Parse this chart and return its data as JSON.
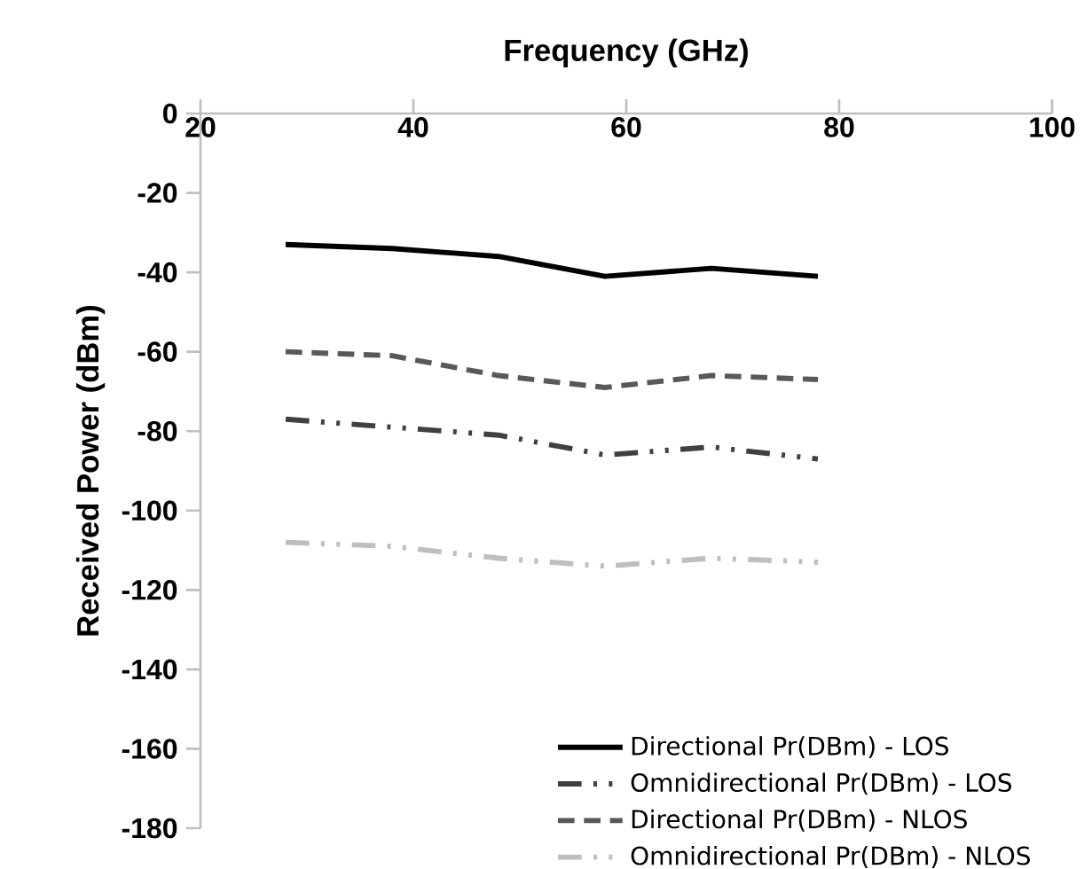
{
  "chart_data": {
    "type": "line",
    "xlabel": "Frequency (GHz)",
    "ylabel": "Received Power (dBm)",
    "x": [
      28,
      38,
      48,
      58,
      68,
      78
    ],
    "xlim": [
      20,
      100
    ],
    "xticks": [
      20,
      40,
      60,
      80,
      100
    ],
    "ylim": [
      -180,
      0
    ],
    "yticks": [
      -180,
      -160,
      -140,
      -120,
      -100,
      -80,
      -60,
      -40,
      -20,
      0
    ],
    "legend": "bottom right",
    "grid": false,
    "marker": "none",
    "series": [
      {
        "name": "Directional Pr(DBm) - LOS",
        "color": "#000000",
        "line_style": "solid",
        "values": [
          -33,
          -34,
          -36,
          -41,
          -39,
          -41
        ]
      },
      {
        "name": "Omnidirectional Pr(DBm) - LOS",
        "color": "#404040",
        "line_style": "dashdotdotted",
        "values": [
          -77,
          -79,
          -81,
          -86,
          -84,
          -87
        ]
      },
      {
        "name": "Directional Pr(DBm) - NLOS",
        "color": "#595959",
        "line_style": "dashed",
        "values": [
          -60,
          -61,
          -66,
          -69,
          -66,
          -67
        ]
      },
      {
        "name": "Omnidirectional Pr(DBm) - NLOS",
        "color": "#bfbfbf",
        "line_style": "dashdotdotted",
        "values": [
          -108,
          -109,
          -112,
          -114,
          -112,
          -113
        ]
      }
    ]
  }
}
